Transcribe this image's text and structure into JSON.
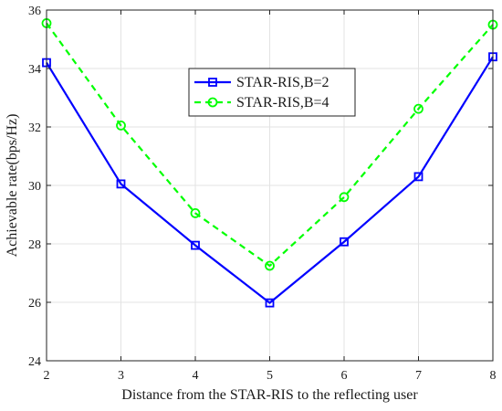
{
  "chart_data": {
    "type": "line",
    "title": "",
    "xlabel": "Distance from the STAR-RIS to the reflecting user",
    "ylabel": "Achievable rate(bps/Hz)",
    "x": [
      2,
      3,
      4,
      5,
      6,
      7,
      8
    ],
    "xlim": [
      2,
      8
    ],
    "ylim": [
      24,
      36
    ],
    "xticks": [
      2,
      3,
      4,
      5,
      6,
      7,
      8
    ],
    "yticks": [
      24,
      26,
      28,
      30,
      32,
      34,
      36
    ],
    "grid": true,
    "legend_position": "top-center",
    "series": [
      {
        "name": "STAR-RIS,B=2",
        "values": [
          34.2,
          30.05,
          27.95,
          25.98,
          28.07,
          30.3,
          34.4
        ],
        "color": "#0000ff",
        "line_style": "solid",
        "marker": "square"
      },
      {
        "name": "STAR-RIS,B=4",
        "values": [
          35.55,
          32.05,
          29.05,
          27.25,
          29.6,
          32.62,
          35.5
        ],
        "color": "#00ff00",
        "line_style": "dashed",
        "marker": "circle"
      }
    ]
  }
}
